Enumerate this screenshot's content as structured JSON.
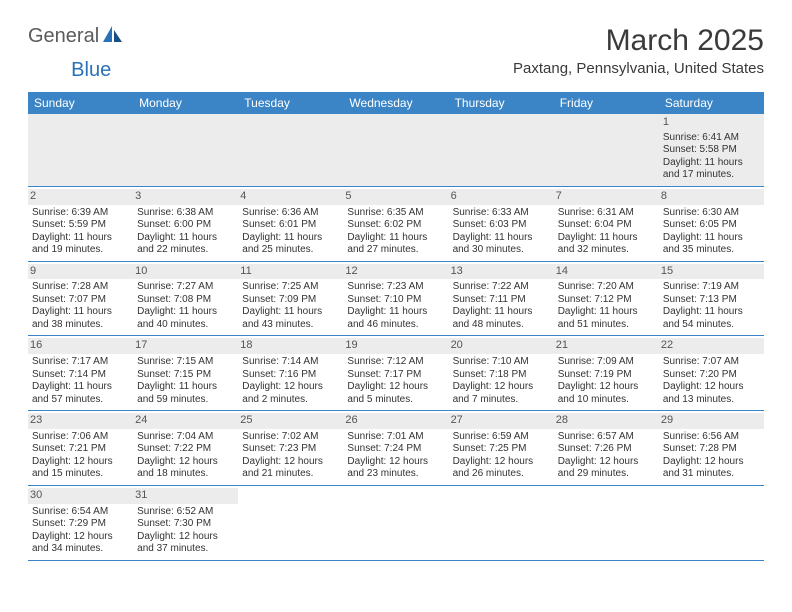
{
  "logo": {
    "part1": "General",
    "part2": "Blue"
  },
  "title": "March 2025",
  "location": "Paxtang, Pennsylvania, United States",
  "colors": {
    "header_bg": "#3b85c6",
    "header_text": "#ffffff",
    "logo_gray": "#5a5a5a",
    "logo_blue": "#2a71b8",
    "stripe": "#ececec",
    "border": "#3b85c6"
  },
  "day_headers": [
    "Sunday",
    "Monday",
    "Tuesday",
    "Wednesday",
    "Thursday",
    "Friday",
    "Saturday"
  ],
  "weeks": [
    [
      null,
      null,
      null,
      null,
      null,
      null,
      {
        "n": "1",
        "sr": "Sunrise: 6:41 AM",
        "ss": "Sunset: 5:58 PM",
        "dl1": "Daylight: 11 hours",
        "dl2": "and 17 minutes."
      }
    ],
    [
      {
        "n": "2",
        "sr": "Sunrise: 6:39 AM",
        "ss": "Sunset: 5:59 PM",
        "dl1": "Daylight: 11 hours",
        "dl2": "and 19 minutes."
      },
      {
        "n": "3",
        "sr": "Sunrise: 6:38 AM",
        "ss": "Sunset: 6:00 PM",
        "dl1": "Daylight: 11 hours",
        "dl2": "and 22 minutes."
      },
      {
        "n": "4",
        "sr": "Sunrise: 6:36 AM",
        "ss": "Sunset: 6:01 PM",
        "dl1": "Daylight: 11 hours",
        "dl2": "and 25 minutes."
      },
      {
        "n": "5",
        "sr": "Sunrise: 6:35 AM",
        "ss": "Sunset: 6:02 PM",
        "dl1": "Daylight: 11 hours",
        "dl2": "and 27 minutes."
      },
      {
        "n": "6",
        "sr": "Sunrise: 6:33 AM",
        "ss": "Sunset: 6:03 PM",
        "dl1": "Daylight: 11 hours",
        "dl2": "and 30 minutes."
      },
      {
        "n": "7",
        "sr": "Sunrise: 6:31 AM",
        "ss": "Sunset: 6:04 PM",
        "dl1": "Daylight: 11 hours",
        "dl2": "and 32 minutes."
      },
      {
        "n": "8",
        "sr": "Sunrise: 6:30 AM",
        "ss": "Sunset: 6:05 PM",
        "dl1": "Daylight: 11 hours",
        "dl2": "and 35 minutes."
      }
    ],
    [
      {
        "n": "9",
        "sr": "Sunrise: 7:28 AM",
        "ss": "Sunset: 7:07 PM",
        "dl1": "Daylight: 11 hours",
        "dl2": "and 38 minutes."
      },
      {
        "n": "10",
        "sr": "Sunrise: 7:27 AM",
        "ss": "Sunset: 7:08 PM",
        "dl1": "Daylight: 11 hours",
        "dl2": "and 40 minutes."
      },
      {
        "n": "11",
        "sr": "Sunrise: 7:25 AM",
        "ss": "Sunset: 7:09 PM",
        "dl1": "Daylight: 11 hours",
        "dl2": "and 43 minutes."
      },
      {
        "n": "12",
        "sr": "Sunrise: 7:23 AM",
        "ss": "Sunset: 7:10 PM",
        "dl1": "Daylight: 11 hours",
        "dl2": "and 46 minutes."
      },
      {
        "n": "13",
        "sr": "Sunrise: 7:22 AM",
        "ss": "Sunset: 7:11 PM",
        "dl1": "Daylight: 11 hours",
        "dl2": "and 48 minutes."
      },
      {
        "n": "14",
        "sr": "Sunrise: 7:20 AM",
        "ss": "Sunset: 7:12 PM",
        "dl1": "Daylight: 11 hours",
        "dl2": "and 51 minutes."
      },
      {
        "n": "15",
        "sr": "Sunrise: 7:19 AM",
        "ss": "Sunset: 7:13 PM",
        "dl1": "Daylight: 11 hours",
        "dl2": "and 54 minutes."
      }
    ],
    [
      {
        "n": "16",
        "sr": "Sunrise: 7:17 AM",
        "ss": "Sunset: 7:14 PM",
        "dl1": "Daylight: 11 hours",
        "dl2": "and 57 minutes."
      },
      {
        "n": "17",
        "sr": "Sunrise: 7:15 AM",
        "ss": "Sunset: 7:15 PM",
        "dl1": "Daylight: 11 hours",
        "dl2": "and 59 minutes."
      },
      {
        "n": "18",
        "sr": "Sunrise: 7:14 AM",
        "ss": "Sunset: 7:16 PM",
        "dl1": "Daylight: 12 hours",
        "dl2": "and 2 minutes."
      },
      {
        "n": "19",
        "sr": "Sunrise: 7:12 AM",
        "ss": "Sunset: 7:17 PM",
        "dl1": "Daylight: 12 hours",
        "dl2": "and 5 minutes."
      },
      {
        "n": "20",
        "sr": "Sunrise: 7:10 AM",
        "ss": "Sunset: 7:18 PM",
        "dl1": "Daylight: 12 hours",
        "dl2": "and 7 minutes."
      },
      {
        "n": "21",
        "sr": "Sunrise: 7:09 AM",
        "ss": "Sunset: 7:19 PM",
        "dl1": "Daylight: 12 hours",
        "dl2": "and 10 minutes."
      },
      {
        "n": "22",
        "sr": "Sunrise: 7:07 AM",
        "ss": "Sunset: 7:20 PM",
        "dl1": "Daylight: 12 hours",
        "dl2": "and 13 minutes."
      }
    ],
    [
      {
        "n": "23",
        "sr": "Sunrise: 7:06 AM",
        "ss": "Sunset: 7:21 PM",
        "dl1": "Daylight: 12 hours",
        "dl2": "and 15 minutes."
      },
      {
        "n": "24",
        "sr": "Sunrise: 7:04 AM",
        "ss": "Sunset: 7:22 PM",
        "dl1": "Daylight: 12 hours",
        "dl2": "and 18 minutes."
      },
      {
        "n": "25",
        "sr": "Sunrise: 7:02 AM",
        "ss": "Sunset: 7:23 PM",
        "dl1": "Daylight: 12 hours",
        "dl2": "and 21 minutes."
      },
      {
        "n": "26",
        "sr": "Sunrise: 7:01 AM",
        "ss": "Sunset: 7:24 PM",
        "dl1": "Daylight: 12 hours",
        "dl2": "and 23 minutes."
      },
      {
        "n": "27",
        "sr": "Sunrise: 6:59 AM",
        "ss": "Sunset: 7:25 PM",
        "dl1": "Daylight: 12 hours",
        "dl2": "and 26 minutes."
      },
      {
        "n": "28",
        "sr": "Sunrise: 6:57 AM",
        "ss": "Sunset: 7:26 PM",
        "dl1": "Daylight: 12 hours",
        "dl2": "and 29 minutes."
      },
      {
        "n": "29",
        "sr": "Sunrise: 6:56 AM",
        "ss": "Sunset: 7:28 PM",
        "dl1": "Daylight: 12 hours",
        "dl2": "and 31 minutes."
      }
    ],
    [
      {
        "n": "30",
        "sr": "Sunrise: 6:54 AM",
        "ss": "Sunset: 7:29 PM",
        "dl1": "Daylight: 12 hours",
        "dl2": "and 34 minutes."
      },
      {
        "n": "31",
        "sr": "Sunrise: 6:52 AM",
        "ss": "Sunset: 7:30 PM",
        "dl1": "Daylight: 12 hours",
        "dl2": "and 37 minutes."
      },
      null,
      null,
      null,
      null,
      null
    ]
  ]
}
